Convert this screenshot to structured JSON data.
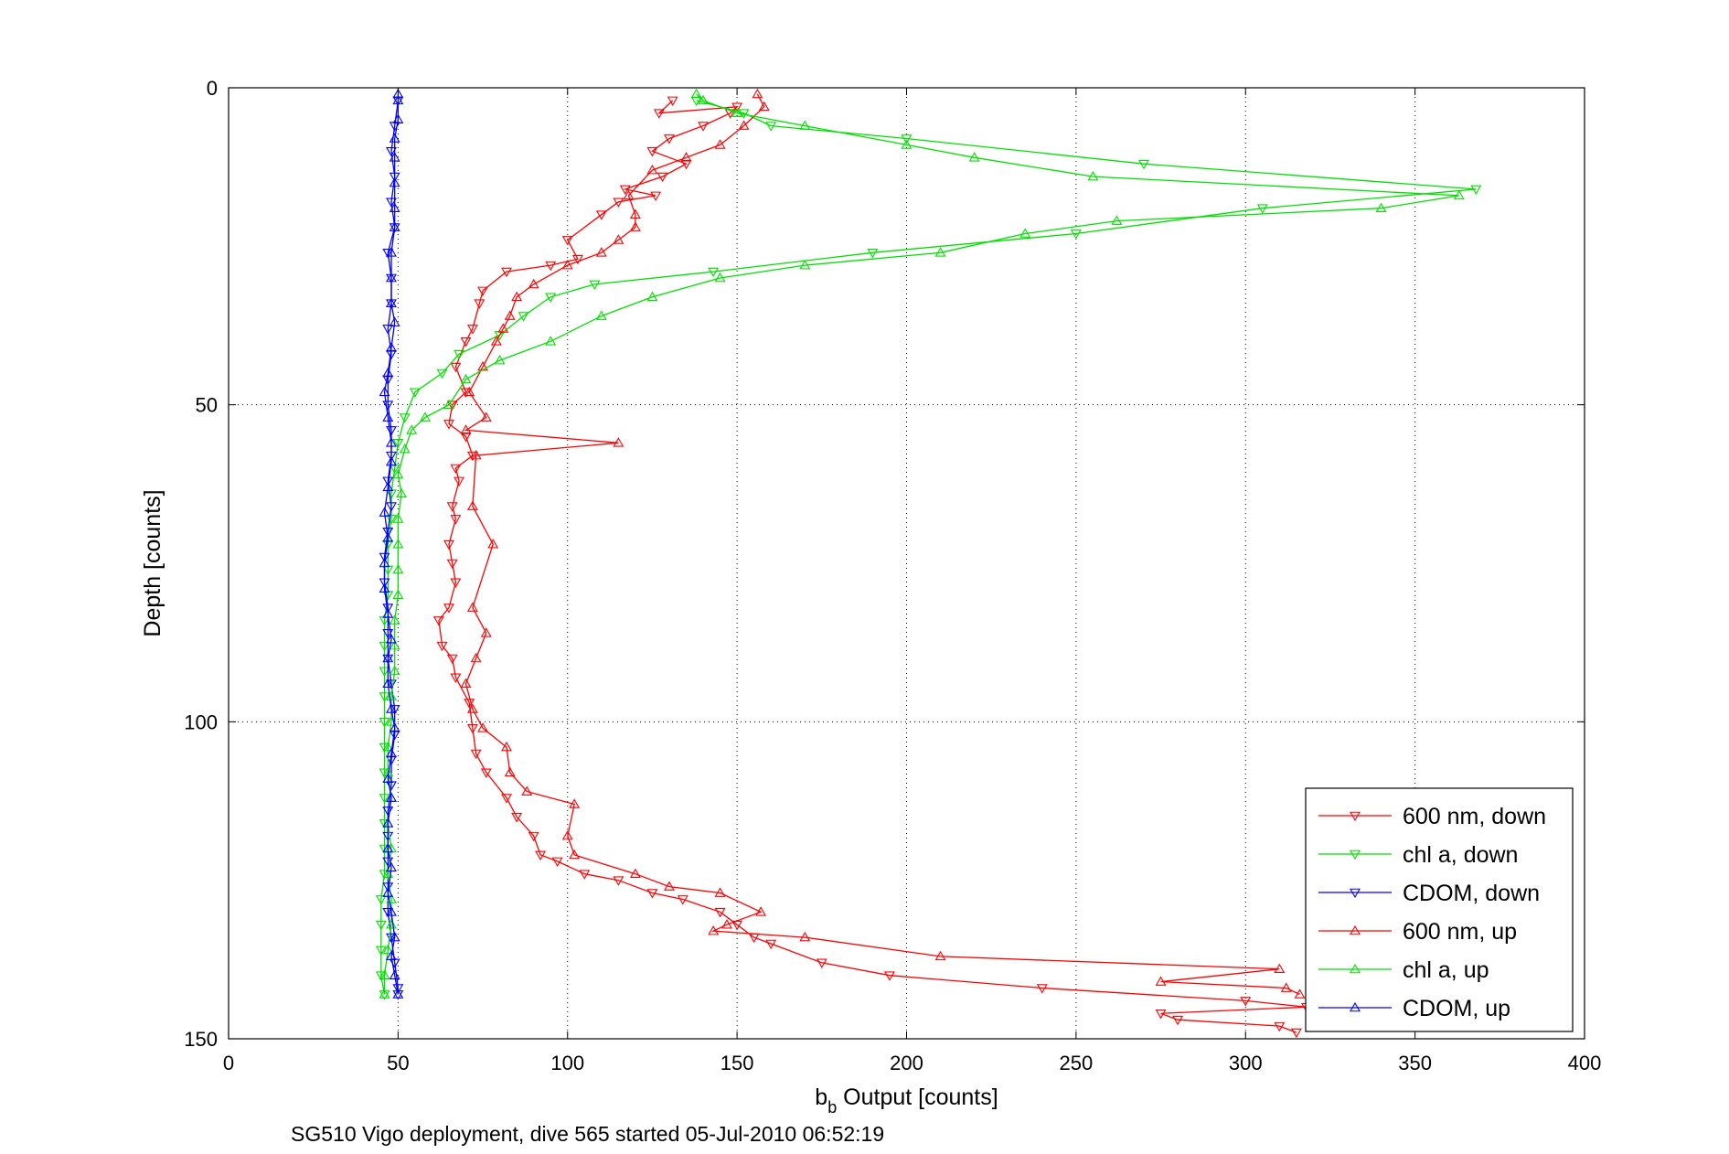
{
  "chart_data": {
    "type": "line",
    "xlabel_main": "b",
    "xlabel_sub": "b",
    "xlabel_rest": " Output [counts]",
    "ylabel": "Depth [counts]",
    "caption": "SG510 Vigo deployment, dive 565 started 05-Jul-2010 06:52:19",
    "xlim": [
      0,
      400
    ],
    "ylim": [
      0,
      150
    ],
    "y_reversed": true,
    "grid": true,
    "legend_position": "bottom-right",
    "x_ticks": [
      "0",
      "50",
      "100",
      "150",
      "200",
      "250",
      "300",
      "350",
      "400"
    ],
    "y_ticks": [
      "0",
      "50",
      "100",
      "150"
    ],
    "series": [
      {
        "name": "600 nm, down",
        "color": "#ff0000",
        "marker": "triangle-down",
        "points": [
          [
            131,
            2
          ],
          [
            127,
            4
          ],
          [
            150,
            3
          ],
          [
            148,
            4
          ],
          [
            140,
            6
          ],
          [
            130,
            8
          ],
          [
            125,
            10
          ],
          [
            135,
            12
          ],
          [
            128,
            14
          ],
          [
            117,
            16
          ],
          [
            126,
            17
          ],
          [
            115,
            18
          ],
          [
            110,
            20
          ],
          [
            100,
            24
          ],
          [
            103,
            27
          ],
          [
            95,
            28
          ],
          [
            82,
            29
          ],
          [
            75,
            32
          ],
          [
            74,
            34
          ],
          [
            72,
            38
          ],
          [
            70,
            40
          ],
          [
            67,
            44
          ],
          [
            70,
            48
          ],
          [
            66,
            50
          ],
          [
            65,
            53
          ],
          [
            70,
            55
          ],
          [
            72,
            58
          ],
          [
            67,
            60
          ],
          [
            68,
            62
          ],
          [
            66,
            66
          ],
          [
            67,
            68
          ],
          [
            65,
            72
          ],
          [
            66,
            75
          ],
          [
            67,
            78
          ],
          [
            65,
            82
          ],
          [
            62,
            84
          ],
          [
            63,
            88
          ],
          [
            66,
            90
          ],
          [
            67,
            93
          ],
          [
            71,
            97
          ],
          [
            72,
            101
          ],
          [
            73,
            105
          ],
          [
            76,
            108
          ],
          [
            82,
            112
          ],
          [
            85,
            115
          ],
          [
            90,
            118
          ],
          [
            92,
            121
          ],
          [
            97,
            122
          ],
          [
            105,
            124
          ],
          [
            115,
            125
          ],
          [
            125,
            127
          ],
          [
            134,
            128
          ],
          [
            145,
            130
          ],
          [
            150,
            132
          ],
          [
            155,
            134
          ],
          [
            160,
            135
          ],
          [
            175,
            138
          ],
          [
            195,
            140
          ],
          [
            240,
            142
          ],
          [
            300,
            144
          ],
          [
            318,
            145
          ],
          [
            275,
            146
          ],
          [
            280,
            147
          ],
          [
            310,
            148
          ],
          [
            315,
            149
          ]
        ]
      },
      {
        "name": "chl a, down",
        "color": "#00e000",
        "marker": "triangle-down",
        "points": [
          [
            138,
            2
          ],
          [
            152,
            4
          ],
          [
            160,
            6
          ],
          [
            200,
            8
          ],
          [
            270,
            12
          ],
          [
            368,
            16
          ],
          [
            305,
            19
          ],
          [
            250,
            23
          ],
          [
            190,
            26
          ],
          [
            143,
            29
          ],
          [
            108,
            31
          ],
          [
            95,
            33
          ],
          [
            87,
            36
          ],
          [
            80,
            39
          ],
          [
            68,
            42
          ],
          [
            63,
            45
          ],
          [
            55,
            48
          ],
          [
            52,
            52
          ],
          [
            50,
            56
          ],
          [
            49,
            60
          ],
          [
            48,
            64
          ],
          [
            48,
            68
          ],
          [
            47,
            72
          ],
          [
            47,
            76
          ],
          [
            47,
            80
          ],
          [
            46,
            84
          ],
          [
            46,
            88
          ],
          [
            46,
            92
          ],
          [
            46,
            96
          ],
          [
            46,
            100
          ],
          [
            46,
            104
          ],
          [
            46,
            108
          ],
          [
            46,
            112
          ],
          [
            46,
            116
          ],
          [
            46,
            120
          ],
          [
            46,
            124
          ],
          [
            45,
            128
          ],
          [
            45,
            132
          ],
          [
            45,
            136
          ],
          [
            45,
            140
          ],
          [
            46,
            143
          ]
        ]
      },
      {
        "name": "CDOM, down",
        "color": "#0000ff",
        "marker": "triangle-down",
        "points": [
          [
            50,
            2
          ],
          [
            49,
            6
          ],
          [
            48,
            10
          ],
          [
            49,
            14
          ],
          [
            48,
            18
          ],
          [
            49,
            22
          ],
          [
            47,
            26
          ],
          [
            48,
            30
          ],
          [
            48,
            34
          ],
          [
            47,
            38
          ],
          [
            48,
            42
          ],
          [
            47,
            46
          ],
          [
            47,
            50
          ],
          [
            48,
            54
          ],
          [
            48,
            58
          ],
          [
            47,
            62
          ],
          [
            48,
            66
          ],
          [
            47,
            70
          ],
          [
            46,
            74
          ],
          [
            46,
            78
          ],
          [
            47,
            82
          ],
          [
            47,
            86
          ],
          [
            47,
            90
          ],
          [
            48,
            94
          ],
          [
            49,
            98
          ],
          [
            49,
            102
          ],
          [
            48,
            106
          ],
          [
            48,
            110
          ],
          [
            47,
            114
          ],
          [
            47,
            118
          ],
          [
            47,
            122
          ],
          [
            47,
            126
          ],
          [
            47,
            130
          ],
          [
            48,
            134
          ],
          [
            49,
            138
          ],
          [
            50,
            142
          ],
          [
            50,
            143
          ]
        ]
      },
      {
        "name": "600 nm, up",
        "color": "#ff0000",
        "marker": "triangle-up",
        "points": [
          [
            316,
            143
          ],
          [
            312,
            142
          ],
          [
            275,
            141
          ],
          [
            310,
            139
          ],
          [
            210,
            137
          ],
          [
            170,
            134
          ],
          [
            143,
            133
          ],
          [
            147,
            132
          ],
          [
            157,
            130
          ],
          [
            145,
            127
          ],
          [
            130,
            126
          ],
          [
            120,
            124
          ],
          [
            102,
            121
          ],
          [
            100,
            118
          ],
          [
            102,
            113
          ],
          [
            88,
            111
          ],
          [
            83,
            108
          ],
          [
            82,
            104
          ],
          [
            75,
            101
          ],
          [
            72,
            98
          ],
          [
            70,
            94
          ],
          [
            73,
            90
          ],
          [
            76,
            86
          ],
          [
            72,
            82
          ],
          [
            78,
            72
          ],
          [
            72,
            66
          ],
          [
            73,
            58
          ],
          [
            115,
            56
          ],
          [
            70,
            54
          ],
          [
            76,
            52
          ],
          [
            71,
            48
          ],
          [
            75,
            44
          ],
          [
            79,
            40
          ],
          [
            81,
            38
          ],
          [
            83,
            36
          ],
          [
            85,
            33
          ],
          [
            90,
            31
          ],
          [
            100,
            28
          ],
          [
            110,
            26
          ],
          [
            115,
            24
          ],
          [
            120,
            22
          ],
          [
            120,
            20
          ],
          [
            118,
            17
          ],
          [
            125,
            13
          ],
          [
            135,
            11
          ],
          [
            145,
            9
          ],
          [
            152,
            6
          ],
          [
            158,
            3
          ],
          [
            156,
            1
          ]
        ]
      },
      {
        "name": "chl a, up",
        "color": "#00e000",
        "marker": "triangle-up",
        "points": [
          [
            46,
            143
          ],
          [
            46,
            140
          ],
          [
            47,
            136
          ],
          [
            48,
            132
          ],
          [
            48,
            128
          ],
          [
            47,
            124
          ],
          [
            48,
            120
          ],
          [
            47,
            116
          ],
          [
            48,
            112
          ],
          [
            47,
            108
          ],
          [
            47,
            104
          ],
          [
            48,
            100
          ],
          [
            48,
            96
          ],
          [
            49,
            92
          ],
          [
            49,
            88
          ],
          [
            49,
            84
          ],
          [
            50,
            80
          ],
          [
            50,
            76
          ],
          [
            50,
            72
          ],
          [
            50,
            68
          ],
          [
            51,
            64
          ],
          [
            50,
            61
          ],
          [
            52,
            57
          ],
          [
            54,
            54
          ],
          [
            58,
            52
          ],
          [
            65,
            50
          ],
          [
            70,
            46
          ],
          [
            80,
            43
          ],
          [
            95,
            40
          ],
          [
            110,
            36
          ],
          [
            125,
            33
          ],
          [
            145,
            30
          ],
          [
            170,
            28
          ],
          [
            210,
            26
          ],
          [
            235,
            23
          ],
          [
            262,
            21
          ],
          [
            340,
            19
          ],
          [
            363,
            17
          ],
          [
            255,
            14
          ],
          [
            220,
            11
          ],
          [
            200,
            9
          ],
          [
            170,
            6
          ],
          [
            150,
            4
          ],
          [
            140,
            2
          ],
          [
            138,
            1
          ]
        ]
      },
      {
        "name": "CDOM, up",
        "color": "#0000ff",
        "marker": "triangle-up",
        "points": [
          [
            50,
            143
          ],
          [
            49,
            140
          ],
          [
            48,
            137
          ],
          [
            49,
            134
          ],
          [
            48,
            130
          ],
          [
            47,
            127
          ],
          [
            48,
            123
          ],
          [
            47,
            120
          ],
          [
            47,
            116
          ],
          [
            48,
            112
          ],
          [
            47,
            109
          ],
          [
            48,
            105
          ],
          [
            49,
            101
          ],
          [
            48,
            98
          ],
          [
            47,
            94
          ],
          [
            47,
            90
          ],
          [
            48,
            87
          ],
          [
            47,
            83
          ],
          [
            46,
            79
          ],
          [
            46,
            75
          ],
          [
            47,
            71
          ],
          [
            46,
            67
          ],
          [
            47,
            63
          ],
          [
            48,
            59
          ],
          [
            48,
            56
          ],
          [
            47,
            52
          ],
          [
            46,
            48
          ],
          [
            47,
            45
          ],
          [
            48,
            41
          ],
          [
            49,
            37
          ],
          [
            48,
            34
          ],
          [
            48,
            30
          ],
          [
            48,
            26
          ],
          [
            49,
            22
          ],
          [
            49,
            19
          ],
          [
            49,
            15
          ],
          [
            49,
            11
          ],
          [
            49,
            8
          ],
          [
            50,
            5
          ],
          [
            50,
            2
          ],
          [
            50,
            1
          ]
        ]
      }
    ]
  }
}
